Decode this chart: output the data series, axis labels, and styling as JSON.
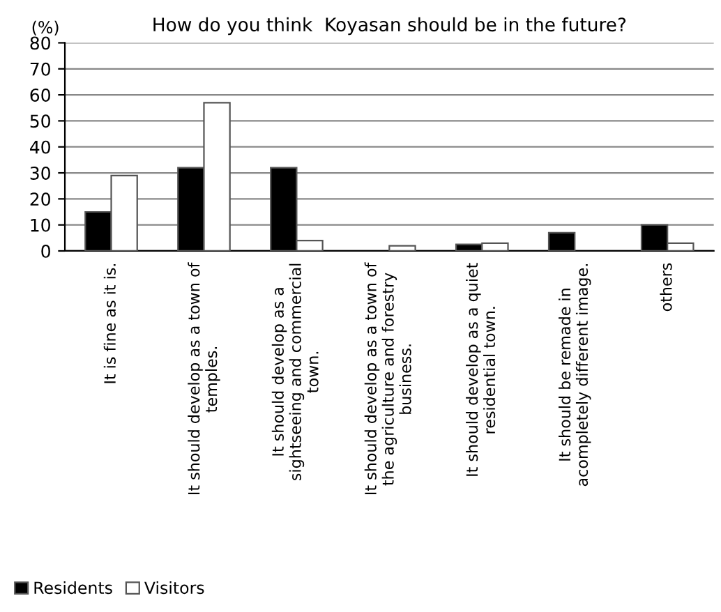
{
  "chart_data": {
    "type": "bar",
    "title": "How do you think  Koyasan should be in the future?",
    "ylabel": "(%)",
    "categories": [
      "It is fine as it is.",
      "It should develop as a town of\ntemples.",
      "It should develop as a\nsightseeing and commercial\ntown.",
      "It should develop as a town of\nthe agriculture and forestry\nbusiness.",
      "It should develop as a quiet\nresidential town.",
      "It should be remade in\nacompletely different image.",
      "others"
    ],
    "series": [
      {
        "name": "Residents",
        "color": "#000000",
        "values": [
          15,
          32,
          32,
          null,
          2.5,
          7,
          10
        ]
      },
      {
        "name": "Visitors",
        "color": "#ffffff",
        "values": [
          29,
          57,
          4,
          2,
          3,
          null,
          3
        ]
      }
    ],
    "ylim": [
      0,
      80
    ],
    "yticks": [
      0,
      10,
      20,
      30,
      40,
      50,
      60,
      70,
      80
    ],
    "grid": "y",
    "legend": "bottom left"
  }
}
